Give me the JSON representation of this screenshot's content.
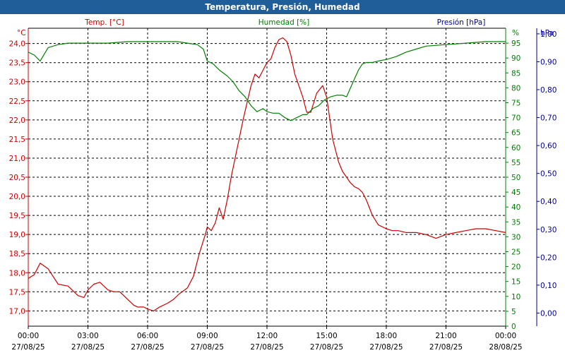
{
  "window": {
    "title": "Temperatura, Presión, Humedad"
  },
  "colors": {
    "temperature": "#cc0000",
    "humidity": "#008000",
    "pressure": "#000099",
    "title_bar": "#1f5e99"
  },
  "chart_data": {
    "type": "line",
    "title": "Temperatura, Presión, Humedad",
    "x_range": [
      "27/08/25 00:00",
      "28/08/25 00:00"
    ],
    "x_ticks": [
      {
        "time": "00:00",
        "date": "27/08/25"
      },
      {
        "time": "03:00",
        "date": "27/08/25"
      },
      {
        "time": "06:00",
        "date": "27/08/25"
      },
      {
        "time": "09:00",
        "date": "27/08/25"
      },
      {
        "time": "12:00",
        "date": "27/08/25"
      },
      {
        "time": "15:00",
        "date": "27/08/25"
      },
      {
        "time": "18:00",
        "date": "27/08/25"
      },
      {
        "time": "21:00",
        "date": "27/08/25"
      },
      {
        "time": "00:00",
        "date": "28/08/25"
      }
    ],
    "grid": true,
    "axes": {
      "temperature": {
        "label": "Temp. [°C]",
        "unit": "°C",
        "ylim": [
          16.6,
          24.4
        ],
        "ticks": [
          "17,0",
          "17,5",
          "18,0",
          "18,5",
          "19,0",
          "19,5",
          "20,0",
          "20,5",
          "21,0",
          "21,5",
          "22,0",
          "22,5",
          "23,0",
          "23,5",
          "24,0"
        ],
        "tick_values": [
          17.0,
          17.5,
          18.0,
          18.5,
          19.0,
          19.5,
          20.0,
          20.5,
          21.0,
          21.5,
          22.0,
          22.5,
          23.0,
          23.5,
          24.0
        ]
      },
      "humidity": {
        "label": "Humedad [%]",
        "unit": "%",
        "ylim": [
          0,
          100
        ],
        "ticks": [
          "0",
          "5",
          "10",
          "15",
          "20",
          "25",
          "30",
          "35",
          "40",
          "45",
          "50",
          "55",
          "60",
          "65",
          "70",
          "75",
          "80",
          "85",
          "90",
          "95"
        ],
        "tick_values": [
          0,
          5,
          10,
          15,
          20,
          25,
          30,
          35,
          40,
          45,
          50,
          55,
          60,
          65,
          70,
          75,
          80,
          85,
          90,
          95
        ]
      },
      "pressure": {
        "label": "Presión [hPa]",
        "unit": "hPa",
        "ylim": [
          -0.047,
          1.02
        ],
        "ticks": [
          "0,00",
          "0,10",
          "0,20",
          "0,30",
          "0,40",
          "0,50",
          "0,60",
          "0,70",
          "0,80",
          "0,90",
          "1,00"
        ],
        "tick_values": [
          0.0,
          0.1,
          0.2,
          0.3,
          0.4,
          0.5,
          0.6,
          0.7,
          0.8,
          0.9,
          1.0
        ]
      }
    },
    "series": [
      {
        "name": "Temp. [°C]",
        "axis": "temperature",
        "x": [
          0,
          0.3,
          0.6,
          1.0,
          1.5,
          2.0,
          2.5,
          2.8,
          3.0,
          3.3,
          3.6,
          4.0,
          4.3,
          4.6,
          5.0,
          5.3,
          5.5,
          5.8,
          6.0,
          6.3,
          6.6,
          7.0,
          7.3,
          7.6,
          8.0,
          8.3,
          8.6,
          8.9,
          9.0,
          9.2,
          9.4,
          9.6,
          9.8,
          10.0,
          10.2,
          10.4,
          10.6,
          10.8,
          11.0,
          11.2,
          11.4,
          11.6,
          11.8,
          12.0,
          12.2,
          12.4,
          12.6,
          12.8,
          13.0,
          13.2,
          13.4,
          13.6,
          13.8,
          14.0,
          14.2,
          14.5,
          14.8,
          15.0,
          15.3,
          15.6,
          15.8,
          16.0,
          16.2,
          16.4,
          16.6,
          16.8,
          17.0,
          17.3,
          17.6,
          18.0,
          18.3,
          18.6,
          19.0,
          19.5,
          20.0,
          20.5,
          21.0,
          21.5,
          22.0,
          22.5,
          23.0,
          23.5,
          24.0
        ],
        "y": [
          17.85,
          17.95,
          18.25,
          18.1,
          17.7,
          17.65,
          17.4,
          17.35,
          17.55,
          17.7,
          17.75,
          17.55,
          17.5,
          17.5,
          17.3,
          17.15,
          17.1,
          17.1,
          17.05,
          17.0,
          17.1,
          17.2,
          17.3,
          17.45,
          17.6,
          17.9,
          18.5,
          19.0,
          19.2,
          19.1,
          19.3,
          19.7,
          19.4,
          19.9,
          20.5,
          21.0,
          21.5,
          22.0,
          22.45,
          22.9,
          23.2,
          23.1,
          23.3,
          23.5,
          23.6,
          23.9,
          24.1,
          24.15,
          24.05,
          23.7,
          23.2,
          22.9,
          22.6,
          22.2,
          22.2,
          22.7,
          22.9,
          22.6,
          21.5,
          20.9,
          20.65,
          20.5,
          20.35,
          20.25,
          20.2,
          20.1,
          19.9,
          19.5,
          19.25,
          19.15,
          19.1,
          19.1,
          19.05,
          19.05,
          19.0,
          18.9,
          19.0,
          19.05,
          19.1,
          19.15,
          19.15,
          19.1,
          19.05
        ]
      },
      {
        "name": "Humedad [%]",
        "axis": "humidity",
        "x": [
          0,
          0.3,
          0.6,
          1.0,
          1.5,
          2.0,
          3.0,
          4.0,
          5.0,
          6.0,
          7.0,
          7.5,
          8.0,
          8.5,
          8.8,
          9.0,
          9.3,
          9.6,
          10.0,
          10.3,
          10.6,
          10.9,
          11.2,
          11.5,
          11.8,
          12.0,
          12.3,
          12.6,
          12.9,
          13.2,
          13.5,
          13.8,
          14.0,
          14.3,
          14.6,
          14.9,
          15.2,
          15.5,
          15.8,
          16.0,
          16.2,
          16.4,
          16.6,
          16.8,
          17.0,
          17.3,
          17.6,
          18.0,
          18.5,
          19.0,
          19.5,
          20.0,
          21.0,
          22.0,
          23.0,
          24.0
        ],
        "y": [
          92,
          91,
          89,
          93.5,
          94.5,
          95,
          95,
          95,
          95.5,
          95.5,
          95.5,
          95.5,
          95,
          94.5,
          93,
          89,
          88,
          86,
          84,
          82,
          79,
          77,
          74,
          72,
          73,
          72,
          71.5,
          71.5,
          70,
          69,
          70,
          71,
          71,
          73,
          74,
          76,
          77,
          77.5,
          77.5,
          77,
          80,
          83,
          86,
          88,
          88.5,
          88.5,
          89,
          89.5,
          90.5,
          92,
          93,
          94,
          94.5,
          95,
          95.5,
          95.5
        ]
      }
    ]
  }
}
